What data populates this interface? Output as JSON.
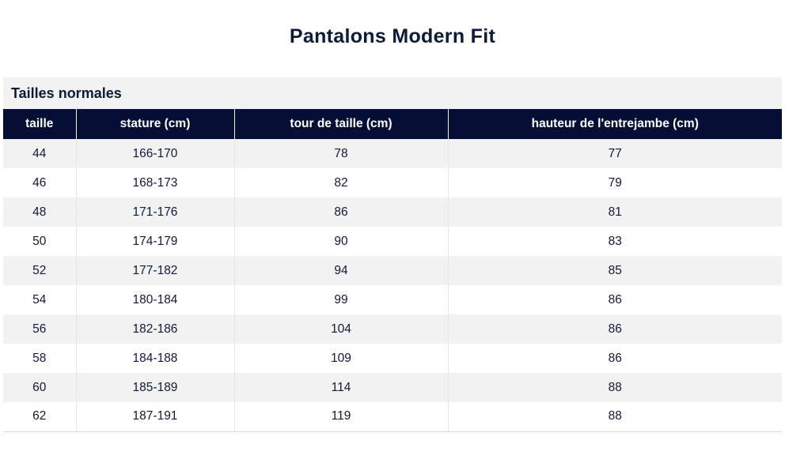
{
  "title": "Pantalons Modern Fit",
  "section_heading": "Tailles normales",
  "table": {
    "columns": [
      "taille",
      "stature (cm)",
      "tour de taille (cm)",
      "hauteur de l'entrejambe (cm)"
    ],
    "column_keys": [
      "taille",
      "stature",
      "tour-de-taille",
      "entrejambe"
    ],
    "rows": [
      [
        "44",
        "166-170",
        "78",
        "77"
      ],
      [
        "46",
        "168-173",
        "82",
        "79"
      ],
      [
        "48",
        "171-176",
        "86",
        "81"
      ],
      [
        "50",
        "174-179",
        "90",
        "83"
      ],
      [
        "52",
        "177-182",
        "94",
        "85"
      ],
      [
        "54",
        "180-184",
        "99",
        "86"
      ],
      [
        "56",
        "182-186",
        "104",
        "86"
      ],
      [
        "58",
        "184-188",
        "109",
        "86"
      ],
      [
        "60",
        "185-189",
        "114",
        "88"
      ],
      [
        "62",
        "187-191",
        "119",
        "88"
      ]
    ]
  },
  "colors": {
    "header_bg": "#050f36",
    "heading_text": "#0c1b3a",
    "stripe_row_bg": "#f2f2f2",
    "cell_text": "#14183a"
  }
}
